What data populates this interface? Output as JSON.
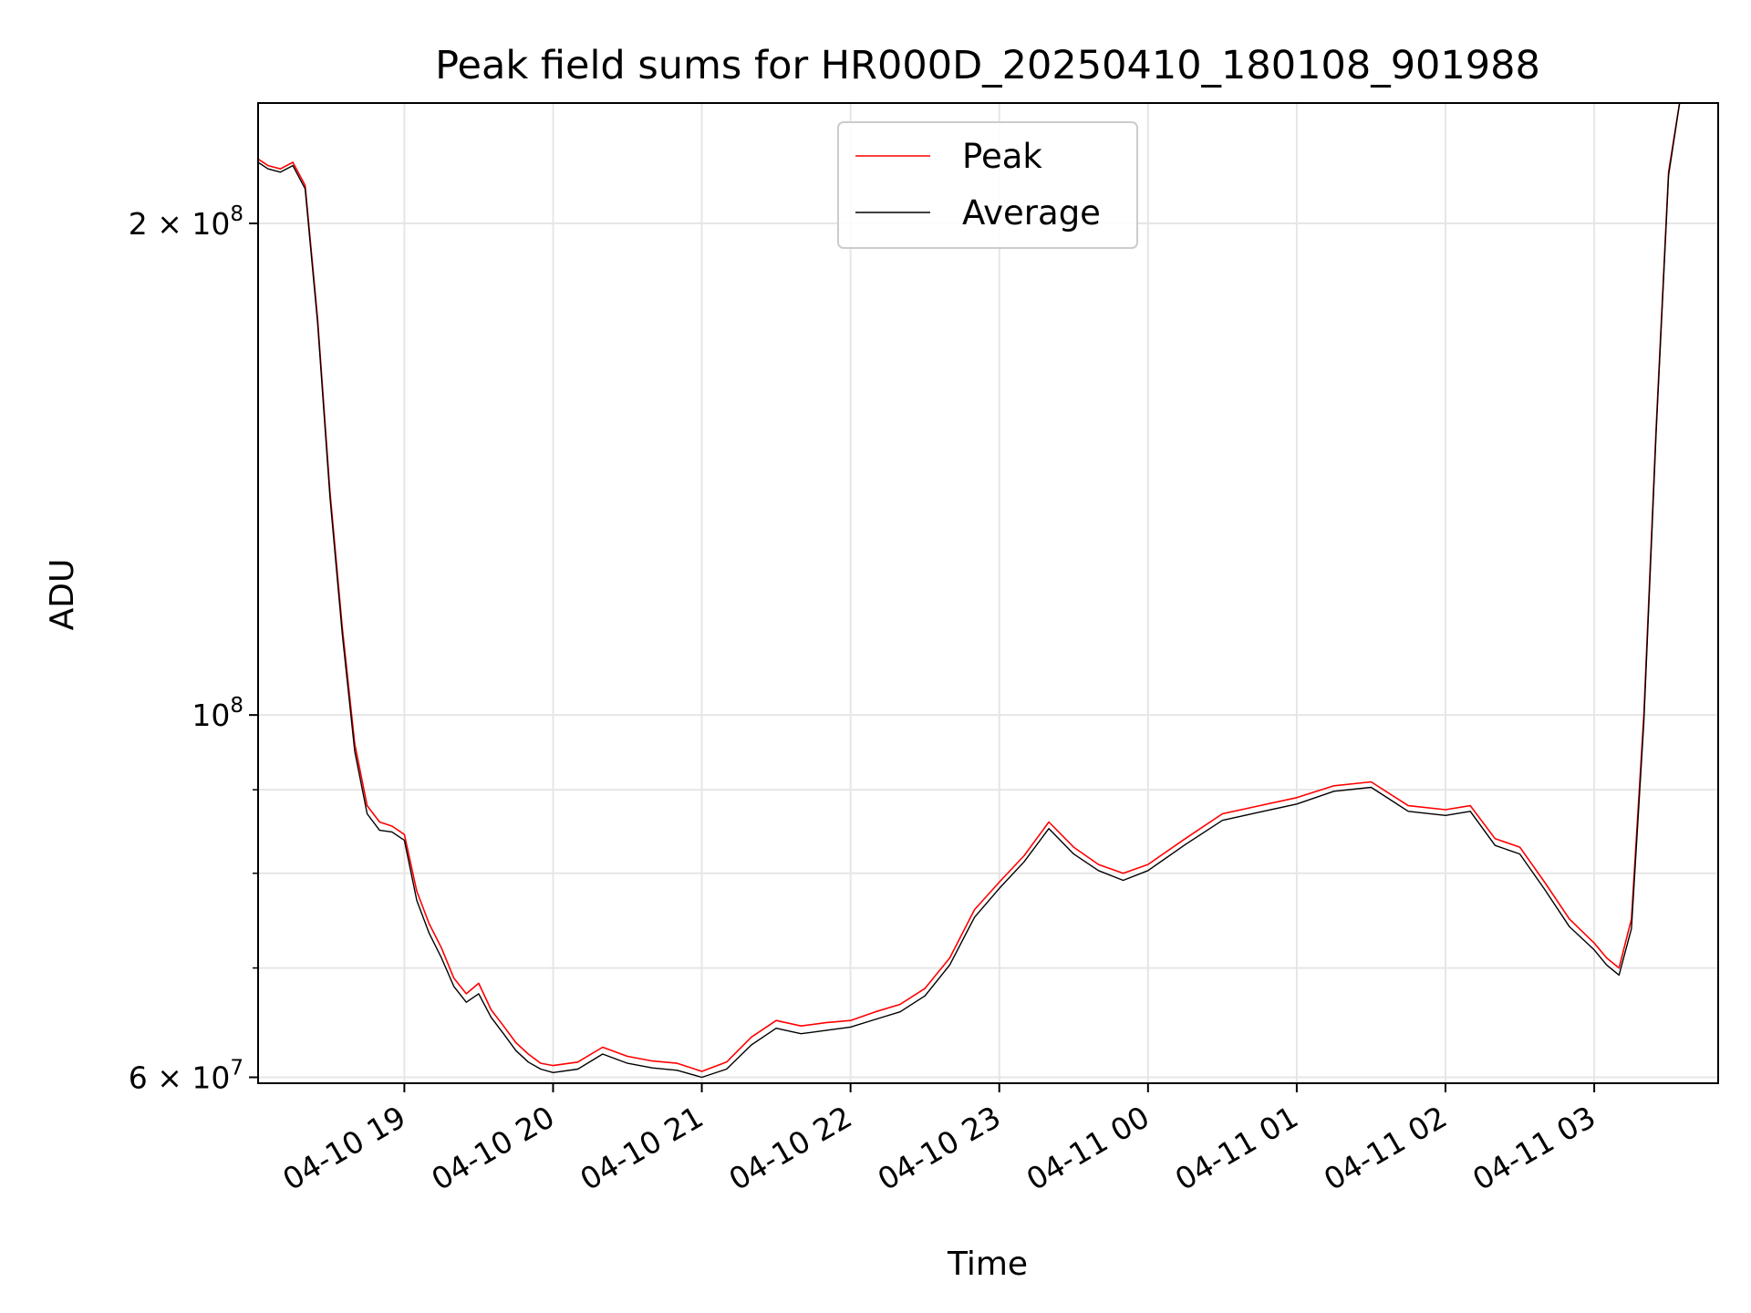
{
  "chart_data": {
    "type": "line",
    "title": "Peak field sums for HR000D_20250410_180108_901988",
    "xlabel": "Time",
    "ylabel": "ADU",
    "y_scale": "log",
    "ylim": [
      59500000,
      237000000
    ],
    "xlim": [
      "2025-04-10 18:01",
      "2025-04-11 03:50"
    ],
    "x_ticks": [
      {
        "value": "2025-04-10 19:00",
        "label": "04-10 19"
      },
      {
        "value": "2025-04-10 20:00",
        "label": "04-10 20"
      },
      {
        "value": "2025-04-10 21:00",
        "label": "04-10 21"
      },
      {
        "value": "2025-04-10 22:00",
        "label": "04-10 22"
      },
      {
        "value": "2025-04-10 23:00",
        "label": "04-10 23"
      },
      {
        "value": "2025-04-11 00:00",
        "label": "04-11 00"
      },
      {
        "value": "2025-04-11 01:00",
        "label": "04-11 01"
      },
      {
        "value": "2025-04-11 02:00",
        "label": "04-11 02"
      },
      {
        "value": "2025-04-11 03:00",
        "label": "04-11 03"
      }
    ],
    "y_ticks_major": [
      {
        "value": 60000000,
        "mantissa": "6",
        "base": "10",
        "exp": "7"
      },
      {
        "value": 100000000,
        "mantissa": "",
        "base": "10",
        "exp": "8"
      },
      {
        "value": 200000000,
        "mantissa": "2",
        "base": "10",
        "exp": "8"
      }
    ],
    "y_ticks_minor": [
      70000000,
      80000000,
      90000000
    ],
    "grid": true,
    "legend_position": "top-center",
    "series": [
      {
        "name": "Peak",
        "color": "#ff0000",
        "x": [
          "2025-04-10 18:01",
          "2025-04-10 18:05",
          "2025-04-10 18:10",
          "2025-04-10 18:15",
          "2025-04-10 18:20",
          "2025-04-10 18:25",
          "2025-04-10 18:30",
          "2025-04-10 18:35",
          "2025-04-10 18:40",
          "2025-04-10 18:45",
          "2025-04-10 18:50",
          "2025-04-10 18:55",
          "2025-04-10 19:00",
          "2025-04-10 19:05",
          "2025-04-10 19:10",
          "2025-04-10 19:15",
          "2025-04-10 19:20",
          "2025-04-10 19:25",
          "2025-04-10 19:30",
          "2025-04-10 19:35",
          "2025-04-10 19:40",
          "2025-04-10 19:45",
          "2025-04-10 19:50",
          "2025-04-10 19:55",
          "2025-04-10 20:00",
          "2025-04-10 20:10",
          "2025-04-10 20:20",
          "2025-04-10 20:30",
          "2025-04-10 20:40",
          "2025-04-10 20:50",
          "2025-04-10 21:00",
          "2025-04-10 21:10",
          "2025-04-10 21:20",
          "2025-04-10 21:30",
          "2025-04-10 21:40",
          "2025-04-10 21:50",
          "2025-04-10 22:00",
          "2025-04-10 22:10",
          "2025-04-10 22:20",
          "2025-04-10 22:30",
          "2025-04-10 22:40",
          "2025-04-10 22:50",
          "2025-04-10 23:00",
          "2025-04-10 23:10",
          "2025-04-10 23:20",
          "2025-04-10 23:30",
          "2025-04-10 23:40",
          "2025-04-10 23:50",
          "2025-04-11 00:00",
          "2025-04-11 00:15",
          "2025-04-11 00:30",
          "2025-04-11 00:45",
          "2025-04-11 01:00",
          "2025-04-11 01:15",
          "2025-04-11 01:30",
          "2025-04-11 01:45",
          "2025-04-11 02:00",
          "2025-04-11 02:10",
          "2025-04-11 02:20",
          "2025-04-11 02:30",
          "2025-04-11 02:40",
          "2025-04-11 02:50",
          "2025-04-11 03:00",
          "2025-04-11 03:05",
          "2025-04-11 03:10",
          "2025-04-11 03:15",
          "2025-04-11 03:20",
          "2025-04-11 03:25",
          "2025-04-11 03:30",
          "2025-04-11 03:35",
          "2025-04-11 03:40",
          "2025-04-11 03:45",
          "2025-04-11 03:50"
        ],
        "y": [
          219000000,
          217000000,
          216000000,
          218000000,
          211000000,
          175000000,
          137000000,
          113000000,
          96000000,
          88000000,
          86000000,
          85500000,
          84500000,
          78000000,
          74500000,
          72000000,
          69000000,
          67500000,
          68500000,
          66000000,
          64500000,
          63000000,
          62000000,
          61200000,
          61000000,
          61300000,
          62600000,
          61800000,
          61400000,
          61200000,
          60500000,
          61300000,
          63500000,
          65000000,
          64500000,
          64800000,
          65000000,
          65800000,
          66500000,
          68000000,
          71000000,
          76000000,
          79000000,
          82000000,
          86000000,
          83000000,
          81000000,
          80000000,
          81000000,
          84000000,
          87000000,
          88000000,
          89000000,
          90500000,
          91000000,
          88000000,
          87500000,
          88000000,
          84000000,
          83000000,
          79000000,
          75000000,
          72500000,
          71000000,
          70000000,
          75000000,
          100000000,
          150000000,
          215000000,
          240000000,
          240000000,
          240000000,
          240000000
        ]
      },
      {
        "name": "Average",
        "color": "#000000",
        "x": [
          "2025-04-10 18:01",
          "2025-04-10 18:05",
          "2025-04-10 18:10",
          "2025-04-10 18:15",
          "2025-04-10 18:20",
          "2025-04-10 18:25",
          "2025-04-10 18:30",
          "2025-04-10 18:35",
          "2025-04-10 18:40",
          "2025-04-10 18:45",
          "2025-04-10 18:50",
          "2025-04-10 18:55",
          "2025-04-10 19:00",
          "2025-04-10 19:05",
          "2025-04-10 19:10",
          "2025-04-10 19:15",
          "2025-04-10 19:20",
          "2025-04-10 19:25",
          "2025-04-10 19:30",
          "2025-04-10 19:35",
          "2025-04-10 19:40",
          "2025-04-10 19:45",
          "2025-04-10 19:50",
          "2025-04-10 19:55",
          "2025-04-10 20:00",
          "2025-04-10 20:10",
          "2025-04-10 20:20",
          "2025-04-10 20:30",
          "2025-04-10 20:40",
          "2025-04-10 20:50",
          "2025-04-10 21:00",
          "2025-04-10 21:10",
          "2025-04-10 21:20",
          "2025-04-10 21:30",
          "2025-04-10 21:40",
          "2025-04-10 21:50",
          "2025-04-10 22:00",
          "2025-04-10 22:10",
          "2025-04-10 22:20",
          "2025-04-10 22:30",
          "2025-04-10 22:40",
          "2025-04-10 22:50",
          "2025-04-10 23:00",
          "2025-04-10 23:10",
          "2025-04-10 23:20",
          "2025-04-10 23:30",
          "2025-04-10 23:40",
          "2025-04-10 23:50",
          "2025-04-11 00:00",
          "2025-04-11 00:15",
          "2025-04-11 00:30",
          "2025-04-11 00:45",
          "2025-04-11 01:00",
          "2025-04-11 01:15",
          "2025-04-11 01:30",
          "2025-04-11 01:45",
          "2025-04-11 02:00",
          "2025-04-11 02:10",
          "2025-04-11 02:20",
          "2025-04-11 02:30",
          "2025-04-11 02:40",
          "2025-04-11 02:50",
          "2025-04-11 03:00",
          "2025-04-11 03:05",
          "2025-04-11 03:10",
          "2025-04-11 03:15",
          "2025-04-11 03:20",
          "2025-04-11 03:25",
          "2025-04-11 03:30",
          "2025-04-11 03:35",
          "2025-04-11 03:40",
          "2025-04-11 03:45",
          "2025-04-11 03:50"
        ],
        "y": [
          218000000,
          216000000,
          215000000,
          217000000,
          210000000,
          174000000,
          136000000,
          112000000,
          95000000,
          87000000,
          85000000,
          84800000,
          83800000,
          77000000,
          73500000,
          71000000,
          68200000,
          66700000,
          67500000,
          65300000,
          63800000,
          62300000,
          61300000,
          60700000,
          60400000,
          60700000,
          62000000,
          61200000,
          60800000,
          60600000,
          60000000,
          60700000,
          62800000,
          64300000,
          63800000,
          64100000,
          64400000,
          65100000,
          65800000,
          67300000,
          70300000,
          75200000,
          78300000,
          81300000,
          85200000,
          82200000,
          80300000,
          79200000,
          80300000,
          83300000,
          86200000,
          87200000,
          88200000,
          89800000,
          90300000,
          87300000,
          86800000,
          87300000,
          83200000,
          82200000,
          78200000,
          74200000,
          71800000,
          70300000,
          69300000,
          74000000,
          99000000,
          149000000,
          214000000,
          240000000,
          240000000,
          240000000,
          240000000
        ]
      }
    ]
  }
}
